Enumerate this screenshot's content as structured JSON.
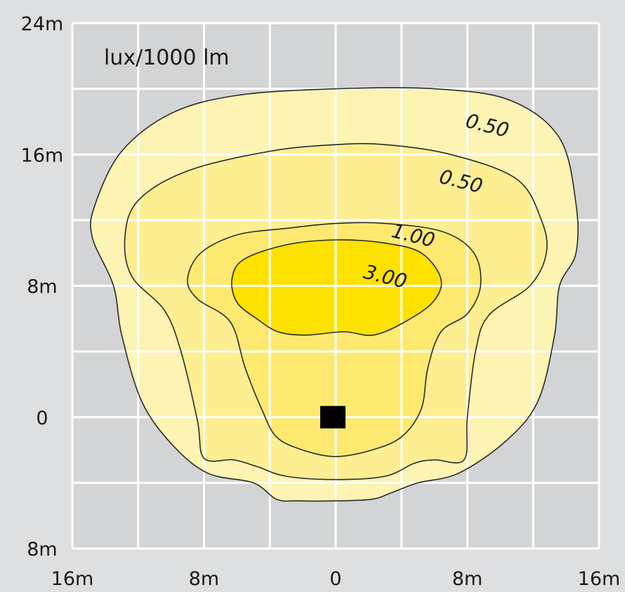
{
  "chart_data": {
    "type": "contour",
    "unit_label": "lux/1000 lm",
    "colors": {
      "background": "#dedfe0",
      "plot_area": "#d3d4d5",
      "grid": "#ffffff",
      "level_0_50_outer": "#fdf3b3",
      "level_0_50_inner": "#fdee92",
      "level_1_00": "#fde970",
      "level_3_00": "#fde100",
      "contour_line": "#2a2a2a",
      "luminaire": "#000000"
    },
    "x_axis": {
      "range": [
        -16,
        16
      ],
      "tick_labels": [
        "16m",
        "8m",
        "0",
        "8m",
        "16m"
      ],
      "tick_values": [
        -16,
        -8,
        0,
        8,
        16
      ],
      "grid_step": 4
    },
    "y_axis": {
      "range": [
        -8,
        24
      ],
      "tick_labels": [
        "8m",
        "0",
        "8m",
        "16m",
        "24m"
      ],
      "tick_values": [
        -8,
        0,
        8,
        16,
        24
      ],
      "grid_step": 4
    },
    "luminaire_position": [
      0,
      0
    ],
    "contours": [
      {
        "label": "0.50",
        "fill": "level_0_50_outer",
        "label_pos": [
          9.2,
          17.7
        ],
        "points": [
          [
            0,
            20
          ],
          [
            -6,
            19.6
          ],
          [
            -10,
            18.5
          ],
          [
            -13,
            16.2
          ],
          [
            -14.6,
            13
          ],
          [
            -14.8,
            11
          ],
          [
            -13.5,
            8
          ],
          [
            -13,
            5
          ],
          [
            -11.8,
            1
          ],
          [
            -10,
            -1.6
          ],
          [
            -7.8,
            -3.4
          ],
          [
            -5,
            -4
          ],
          [
            -3.6,
            -5
          ],
          [
            -2.3,
            -5.1
          ],
          [
            0,
            -5.1
          ],
          [
            2.2,
            -5
          ],
          [
            3.4,
            -4.6
          ],
          [
            5,
            -4
          ],
          [
            7.5,
            -3.4
          ],
          [
            10.4,
            -1.4
          ],
          [
            12.3,
            1
          ],
          [
            13.3,
            5
          ],
          [
            13.6,
            8
          ],
          [
            14.6,
            10
          ],
          [
            14.6,
            13
          ],
          [
            13.6,
            17
          ],
          [
            10.6,
            19.3
          ],
          [
            6,
            20
          ]
        ]
      },
      {
        "label": "0.50",
        "fill": "level_0_50_inner",
        "label_pos": [
          7.6,
          14.3
        ],
        "points": [
          [
            0,
            16.6
          ],
          [
            -4,
            16.2
          ],
          [
            -9,
            15
          ],
          [
            -12,
            13.2
          ],
          [
            -12.8,
            11
          ],
          [
            -12.4,
            8.6
          ],
          [
            -10.4,
            6.5
          ],
          [
            -9.4,
            4
          ],
          [
            -8.4,
            -0.2
          ],
          [
            -8,
            -2.5
          ],
          [
            -6.2,
            -2.6
          ],
          [
            -4.8,
            -3
          ],
          [
            -3,
            -3.6
          ],
          [
            0,
            -3.8
          ],
          [
            3,
            -3.6
          ],
          [
            4.8,
            -2.8
          ],
          [
            6,
            -2.6
          ],
          [
            7.8,
            -2.6
          ],
          [
            8,
            0
          ],
          [
            8.5,
            4
          ],
          [
            9.3,
            6.2
          ],
          [
            11.8,
            8
          ],
          [
            12.8,
            10
          ],
          [
            12.5,
            12
          ],
          [
            11,
            14.5
          ],
          [
            7,
            16
          ],
          [
            3,
            16.6
          ]
        ]
      },
      {
        "label": "1.00",
        "fill": "level_1_00",
        "label_pos": [
          4.7,
          11.0
        ],
        "points": [
          [
            0,
            11.8
          ],
          [
            -3,
            11.5
          ],
          [
            -6,
            11.1
          ],
          [
            -8.2,
            10
          ],
          [
            -9,
            8.4
          ],
          [
            -8.4,
            7.2
          ],
          [
            -6.4,
            5.8
          ],
          [
            -5.5,
            3
          ],
          [
            -4.5,
            0.5
          ],
          [
            -3.6,
            -1.2
          ],
          [
            -2,
            -2
          ],
          [
            0,
            -2.4
          ],
          [
            2.2,
            -2
          ],
          [
            4,
            -1.2
          ],
          [
            5.2,
            0.5
          ],
          [
            5.6,
            3
          ],
          [
            6.4,
            5.2
          ],
          [
            8,
            6.3
          ],
          [
            8.8,
            8
          ],
          [
            8.4,
            10
          ],
          [
            6.5,
            11.3
          ],
          [
            3,
            11.8
          ]
        ]
      },
      {
        "label": "3.00",
        "fill": "level_3_00",
        "label_pos": [
          3.0,
          8.5
        ],
        "points": [
          [
            0,
            10.8
          ],
          [
            -3,
            10.5
          ],
          [
            -5.6,
            9.6
          ],
          [
            -6.3,
            8.4
          ],
          [
            -6,
            7
          ],
          [
            -4.8,
            6
          ],
          [
            -3.5,
            5.2
          ],
          [
            -1.8,
            5
          ],
          [
            0.5,
            5.2
          ],
          [
            2.3,
            5
          ],
          [
            4.2,
            5.8
          ],
          [
            5.9,
            7
          ],
          [
            6.4,
            8.4
          ],
          [
            5.2,
            10
          ],
          [
            3,
            10.6
          ]
        ]
      }
    ]
  }
}
